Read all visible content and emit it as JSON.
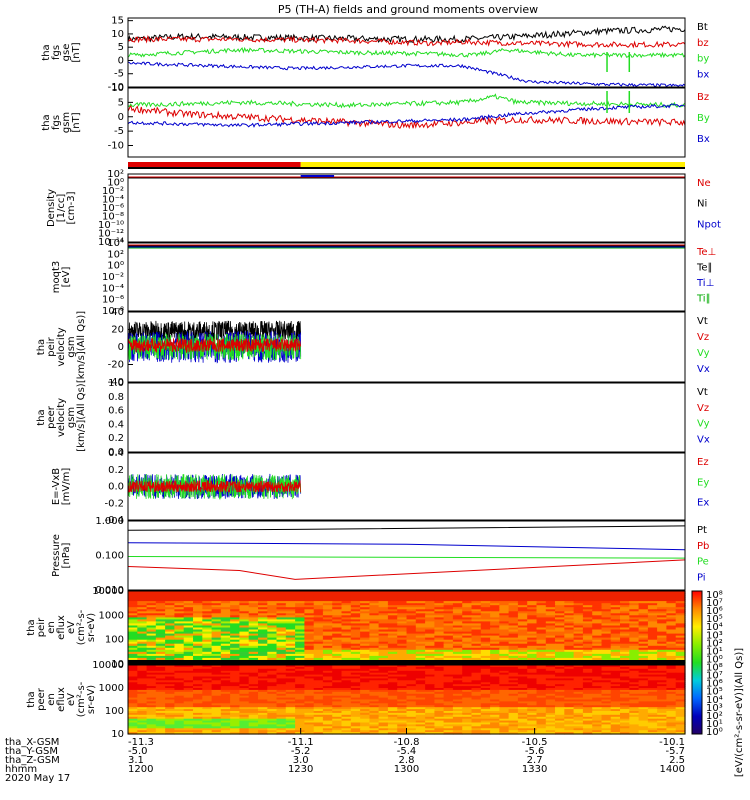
{
  "title": "P5 (TH-A) fields and ground moments overview",
  "colors": {
    "black": "#000000",
    "red": "#dd0000",
    "green": "#22dd22",
    "blue": "#0000cc",
    "yellow": "#ffee00",
    "darkgreen": "#00aa00",
    "darkred": "#cc0000"
  },
  "chart_data": [
    {
      "type": "line",
      "id": "fgs_gse",
      "ylabel": [
        "tha",
        "fgs",
        "gse",
        "[nT]"
      ],
      "yticks": [
        15,
        10,
        5,
        0,
        -5,
        -10
      ],
      "ylim": [
        -10,
        16
      ],
      "legend": [
        {
          "name": "Bt",
          "color": "black"
        },
        {
          "name": "bz",
          "color": "red"
        },
        {
          "name": "by",
          "color": "green"
        },
        {
          "name": "bx",
          "color": "blue"
        }
      ],
      "series": [
        {
          "name": "Bt",
          "color": "black",
          "x": [
            0,
            0.1,
            0.3,
            0.5,
            0.6,
            0.7,
            0.85,
            1
          ],
          "y": [
            8,
            9,
            8.5,
            8,
            8,
            9,
            11,
            12
          ],
          "noise": 1.2
        },
        {
          "name": "bz",
          "color": "red",
          "x": [
            0,
            0.2,
            0.4,
            0.55,
            0.6,
            0.7,
            0.85,
            1
          ],
          "y": [
            8,
            8,
            7.5,
            6.5,
            7,
            6.5,
            6,
            6
          ],
          "noise": 1.0
        },
        {
          "name": "by",
          "color": "green",
          "x": [
            0,
            0.2,
            0.4,
            0.55,
            0.62,
            0.68,
            0.8,
            1
          ],
          "y": [
            2,
            4,
            3,
            2.5,
            2,
            4,
            2,
            2
          ],
          "noise": 0.8
        },
        {
          "name": "bx",
          "color": "blue",
          "x": [
            0,
            0.15,
            0.3,
            0.5,
            0.6,
            0.66,
            0.72,
            0.85,
            1
          ],
          "y": [
            -1,
            -2,
            -3,
            -2,
            -2,
            -5,
            -8,
            -9,
            -9.5
          ],
          "noise": 0.6
        }
      ]
    },
    {
      "type": "line",
      "id": "fgs_gsm",
      "ylabel": [
        "tha",
        "fgs",
        "gsm",
        "[nT]"
      ],
      "yticks": [
        10,
        5,
        0,
        -5,
        -10
      ],
      "ylim": [
        -14,
        10
      ],
      "legend": [
        {
          "name": "Bz",
          "color": "red"
        },
        {
          "name": "By",
          "color": "green"
        },
        {
          "name": "Bx",
          "color": "blue"
        }
      ],
      "series": [
        {
          "name": "Bz",
          "color": "red",
          "x": [
            0,
            0.1,
            0.3,
            0.5,
            0.7,
            1
          ],
          "y": [
            3,
            1,
            -1,
            -3,
            -1,
            -2
          ],
          "noise": 1.2
        },
        {
          "name": "By",
          "color": "green",
          "x": [
            0,
            0.2,
            0.4,
            0.6,
            0.66,
            0.7,
            1
          ],
          "y": [
            4,
            5,
            4,
            5,
            7,
            5,
            4
          ],
          "noise": 0.8
        },
        {
          "name": "Bx",
          "color": "blue",
          "x": [
            0,
            0.2,
            0.4,
            0.6,
            0.7,
            0.85,
            1
          ],
          "y": [
            -2,
            -3,
            -2,
            -1,
            1,
            3,
            4
          ],
          "noise": 0.6
        }
      ]
    },
    {
      "type": "line",
      "id": "density",
      "ylabel": [
        "Density",
        "[1/cc]",
        "[cm-3]"
      ],
      "yticks": [
        "10²",
        "10⁰",
        "10⁻²",
        "10⁻⁴",
        "10⁻⁶",
        "10⁻⁸",
        "10⁻¹⁰",
        "10⁻¹²",
        "10⁻¹⁴"
      ],
      "legend": [
        {
          "name": "Ne",
          "color": "red"
        },
        {
          "name": "Ni",
          "color": "black"
        },
        {
          "name": "Npot",
          "color": "blue"
        }
      ]
    },
    {
      "type": "line",
      "id": "temperature",
      "ylabel": [
        "moqt3",
        "[eV]"
      ],
      "yticks": [
        "10⁴",
        "10²",
        "10⁰",
        "10⁻²",
        "10⁻⁴",
        "10⁻⁶",
        "10⁻⁸"
      ],
      "legend": [
        {
          "name": "Te⊥",
          "color": "red"
        },
        {
          "name": "Te∥",
          "color": "black"
        },
        {
          "name": "Ti⊥",
          "color": "blue"
        },
        {
          "name": "Ti∥",
          "color": "darkgreen"
        }
      ]
    },
    {
      "type": "line",
      "id": "peir_velocity",
      "ylabel": [
        "tha",
        "peir",
        "velocity",
        "gsm",
        "[km/s](All Qs)]"
      ],
      "yticks": [
        40,
        20,
        0,
        -20,
        -40
      ],
      "ylim": [
        -40,
        40
      ],
      "legend": [
        {
          "name": "Vt",
          "color": "black"
        },
        {
          "name": "Vz",
          "color": "red"
        },
        {
          "name": "Vy",
          "color": "green"
        },
        {
          "name": "Vx",
          "color": "blue"
        }
      ]
    },
    {
      "type": "line",
      "id": "peer_velocity",
      "ylabel": [
        "tha",
        "peer",
        "velocity",
        "gsm",
        "[km/s](All Qs)"
      ],
      "yticks": [
        "1.0",
        "0.8",
        "0.6",
        "0.4",
        "0.2",
        "0.0"
      ],
      "legend": [
        {
          "name": "Vt",
          "color": "black"
        },
        {
          "name": "Vz",
          "color": "red"
        },
        {
          "name": "Vy",
          "color": "green"
        },
        {
          "name": "Vx",
          "color": "blue"
        }
      ]
    },
    {
      "type": "line",
      "id": "efield",
      "ylabel": [
        "E=-VxB",
        "[mV/m]"
      ],
      "yticks": [
        "0.4",
        "0.2",
        "0.0",
        "-0.2",
        "-0.4"
      ],
      "ylim": [
        -0.4,
        0.4
      ],
      "legend": [
        {
          "name": "Ez",
          "color": "red"
        },
        {
          "name": "Ey",
          "color": "green"
        },
        {
          "name": "Ex",
          "color": "blue"
        }
      ]
    },
    {
      "type": "line",
      "id": "pressure",
      "ylabel": [
        "Pressure",
        "[nPa]"
      ],
      "yticks": [
        "1.000",
        "0.100",
        "0.010"
      ],
      "legend": [
        {
          "name": "Pt",
          "color": "black"
        },
        {
          "name": "Pb",
          "color": "red"
        },
        {
          "name": "Pe",
          "color": "green"
        },
        {
          "name": "Pi",
          "color": "blue"
        }
      ],
      "series": [
        {
          "name": "Pt",
          "color": "black",
          "x": [
            0,
            0.3,
            1
          ],
          "y": [
            0.7,
            0.75,
            1.0
          ]
        },
        {
          "name": "Pb",
          "color": "red",
          "x": [
            0,
            0.2,
            0.3,
            1
          ],
          "y": [
            0.035,
            0.025,
            0.012,
            0.06
          ]
        },
        {
          "name": "Pe",
          "color": "green",
          "x": [
            0,
            1
          ],
          "y": [
            0.08,
            0.07
          ]
        },
        {
          "name": "Pi",
          "color": "blue",
          "x": [
            0,
            0.5,
            1
          ],
          "y": [
            0.25,
            0.22,
            0.14
          ]
        }
      ]
    },
    {
      "type": "heatmap",
      "id": "peir_spec",
      "ylabel": [
        "tha",
        "peir",
        "en",
        "eflux",
        "eV",
        "(cm²-s-",
        "sr-eV)"
      ],
      "yticks": [
        "10000",
        "1000",
        "100",
        "10"
      ]
    },
    {
      "type": "heatmap",
      "id": "peer_spec",
      "ylabel": [
        "tha",
        "peer",
        "en",
        "eflux",
        "eV",
        "(cm²-s-",
        "sr-eV)"
      ],
      "yticks": [
        "10000",
        "1000",
        "100",
        "10"
      ]
    }
  ],
  "colorbar": {
    "ticks": [
      "10⁸",
      "10⁷",
      "10⁶",
      "10⁵",
      "10⁴",
      "10³",
      "10²",
      "10¹",
      "10⁰",
      "10⁸",
      "10⁷",
      "10⁶",
      "10⁵",
      "10⁴",
      "10³",
      "10²",
      "10¹",
      "10⁰"
    ],
    "label": "[eV/(cm²-s-sr-eV)](All Qs)]"
  },
  "xaxis": {
    "rows": [
      {
        "label": "tha_X-GSM",
        "values": [
          "-11.3",
          "-11.1",
          "-10.8",
          "-10.5",
          "-10.1"
        ]
      },
      {
        "label": "tha_Y-GSM",
        "values": [
          "-5.0",
          "-5.2",
          "-5.4",
          "-5.6",
          "-5.7"
        ]
      },
      {
        "label": "tha_Z-GSM",
        "values": [
          "3.1",
          "3.0",
          "2.8",
          "2.7",
          "2.5"
        ]
      },
      {
        "label": "hhmm",
        "values": [
          "1200",
          "1230",
          "1300",
          "1330",
          "1400"
        ]
      }
    ],
    "date": "2020 May 17"
  }
}
